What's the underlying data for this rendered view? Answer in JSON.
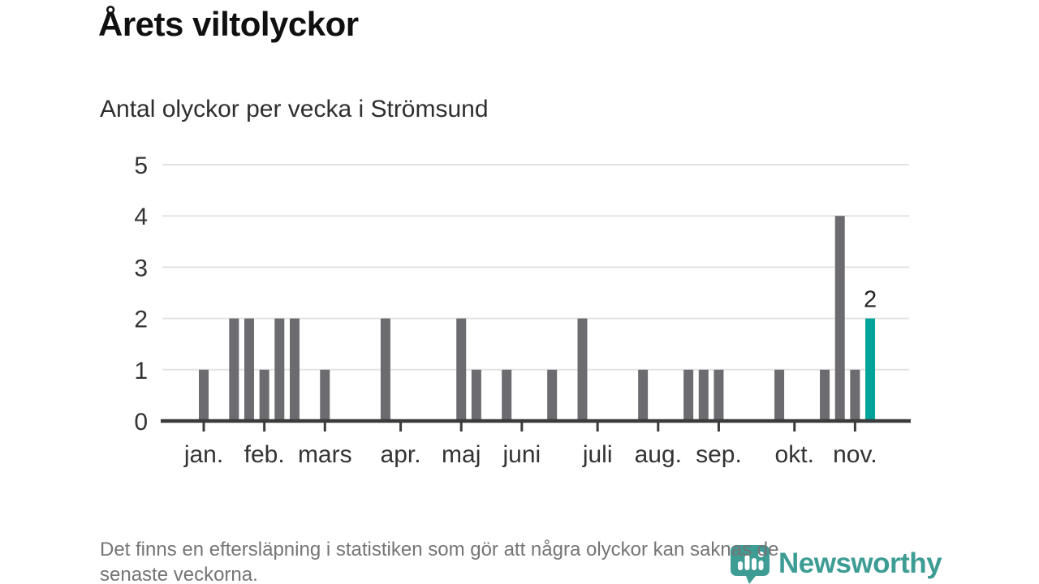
{
  "header": {
    "title": "Årets viltolyckor",
    "subtitle": "Antal olyckor per vecka i Strömsund"
  },
  "footer": {
    "note_lines": [
      "Det finns en eftersläpning i statistiken som gör att några olyckor kan saknas de",
      "senaste veckorna."
    ],
    "logo_text": "Newsworthy"
  },
  "colors": {
    "bar": "#6b6b70",
    "highlight": "#00a39a",
    "grid": "#e3e3e3",
    "axis": "#3b3b3b",
    "axis_text": "#333333",
    "logo": "#3d9c94",
    "footnote_text": "#757575"
  },
  "chart_data": {
    "type": "bar",
    "title": "Årets viltolyckor",
    "subtitle": "Antal olyckor per vecka i Strömsund",
    "x_unit": "week",
    "grid": true,
    "ylim": [
      0,
      5
    ],
    "y_ticks": [
      0,
      1,
      2,
      3,
      4,
      5
    ],
    "weeks": [
      1,
      0,
      2,
      2,
      1,
      2,
      2,
      0,
      1,
      0,
      0,
      0,
      2,
      0,
      0,
      0,
      0,
      2,
      1,
      0,
      1,
      0,
      0,
      1,
      0,
      2,
      0,
      0,
      0,
      1,
      0,
      0,
      1,
      1,
      1,
      0,
      0,
      0,
      1,
      0,
      0,
      1,
      4,
      1,
      2
    ],
    "highlight_week": 45,
    "highlight_value_label": "2",
    "month_ticks": [
      {
        "label": "jan.",
        "week": 1
      },
      {
        "label": "feb.",
        "week": 5
      },
      {
        "label": "mars",
        "week": 9
      },
      {
        "label": "apr.",
        "week": 14
      },
      {
        "label": "maj",
        "week": 18
      },
      {
        "label": "juni",
        "week": 22
      },
      {
        "label": "juli",
        "week": 27
      },
      {
        "label": "aug.",
        "week": 31
      },
      {
        "label": "sep.",
        "week": 35
      },
      {
        "label": "okt.",
        "week": 40
      },
      {
        "label": "nov.",
        "week": 44
      }
    ]
  }
}
